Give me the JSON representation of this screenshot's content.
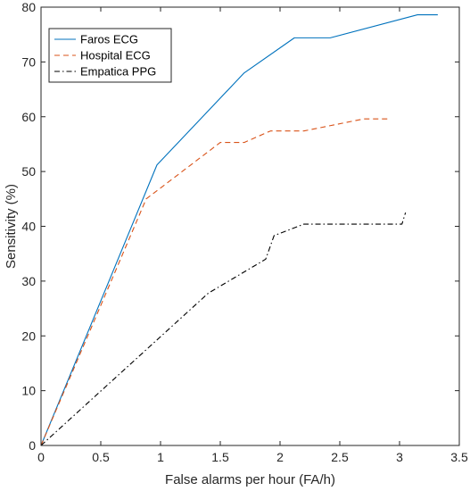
{
  "chart_data": {
    "type": "line",
    "title": "",
    "xlabel": "False alarms per hour (FA/h)",
    "ylabel": "Sensitivity (%)",
    "xlim": [
      0,
      3.5
    ],
    "ylim": [
      0,
      80
    ],
    "xticks": [
      0,
      0.5,
      1,
      1.5,
      2,
      2.5,
      3,
      3.5
    ],
    "yticks": [
      0,
      10,
      20,
      30,
      40,
      50,
      60,
      70,
      80
    ],
    "xtick_labels": [
      "0",
      "0.5",
      "1",
      "1.5",
      "2",
      "2.5",
      "3",
      "3.5"
    ],
    "ytick_labels": [
      "0",
      "10",
      "20",
      "30",
      "40",
      "50",
      "60",
      "70",
      "80"
    ],
    "grid": false,
    "box": true,
    "legend_position": "top-left",
    "series": [
      {
        "name": "Faros ECG",
        "color": "#0072BD",
        "dash": "solid",
        "x": [
          0,
          0.97,
          1.7,
          2.12,
          2.42,
          3.15,
          3.32
        ],
        "y": [
          0,
          51.2,
          68.0,
          74.4,
          74.4,
          78.6,
          78.6
        ]
      },
      {
        "name": "Hospital ECG",
        "color": "#D95319",
        "dash": "dashed",
        "x": [
          0,
          0.88,
          1.5,
          1.7,
          1.92,
          2.2,
          2.7,
          2.9
        ],
        "y": [
          0,
          45.0,
          55.3,
          55.3,
          57.4,
          57.4,
          59.6,
          59.6
        ]
      },
      {
        "name": "Empatica PPG",
        "color": "#000000",
        "dash": "dashdot",
        "x": [
          0,
          1.4,
          1.88,
          1.95,
          2.2,
          3.02,
          3.05
        ],
        "y": [
          0,
          27.8,
          34.0,
          38.3,
          40.4,
          40.4,
          42.5
        ]
      }
    ]
  }
}
